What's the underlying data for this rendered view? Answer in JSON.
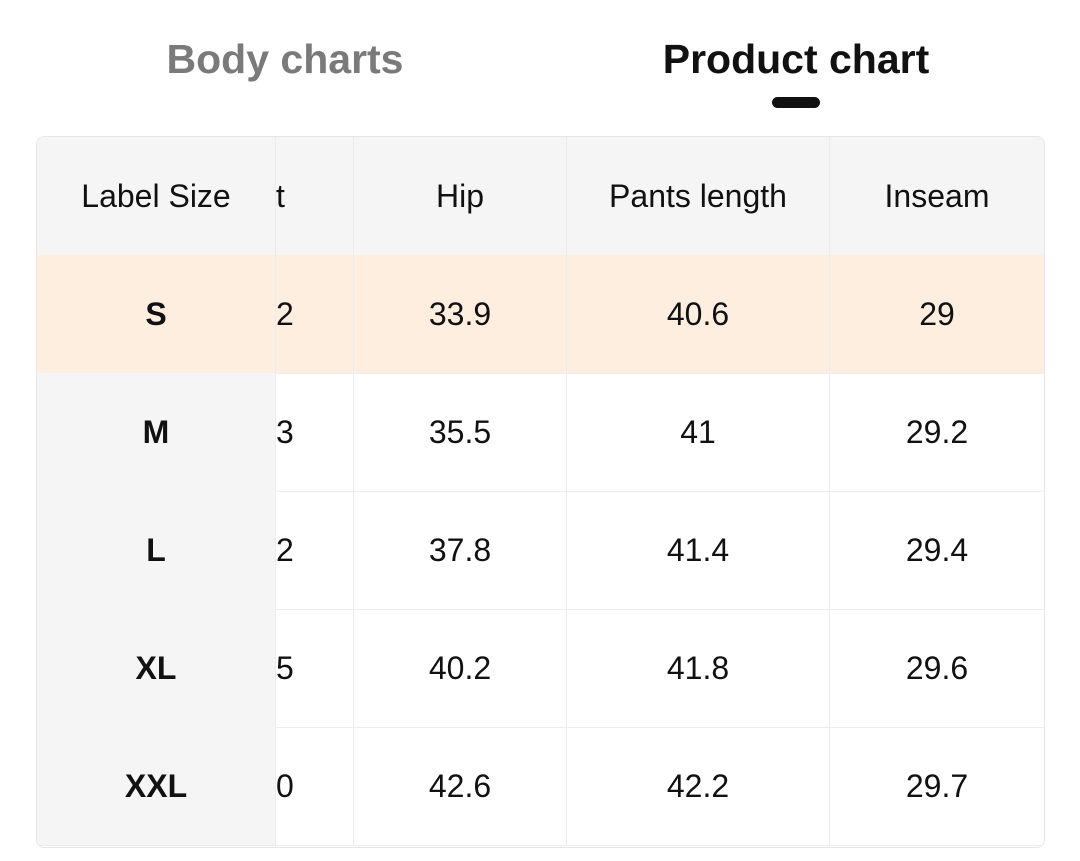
{
  "tabs": [
    {
      "label": "Body charts",
      "active": false
    },
    {
      "label": "Product chart",
      "active": true
    }
  ],
  "table": {
    "headers": [
      "Label Size",
      "t",
      "Hip",
      "Pants length",
      "Inseam"
    ],
    "rows": [
      [
        "S",
        "2",
        "33.9",
        "40.6",
        "29"
      ],
      [
        "M",
        "3",
        "35.5",
        "41",
        "29.2"
      ],
      [
        "L",
        "2",
        "37.8",
        "41.4",
        "29.4"
      ],
      [
        "XL",
        "5",
        "40.2",
        "41.8",
        "29.6"
      ],
      [
        "XXL",
        "0",
        "42.6",
        "42.2",
        "29.7"
      ]
    ],
    "selected_row": 0
  },
  "colors": {
    "selected_row": "#feeee0",
    "header_bg": "#f5f5f5"
  }
}
